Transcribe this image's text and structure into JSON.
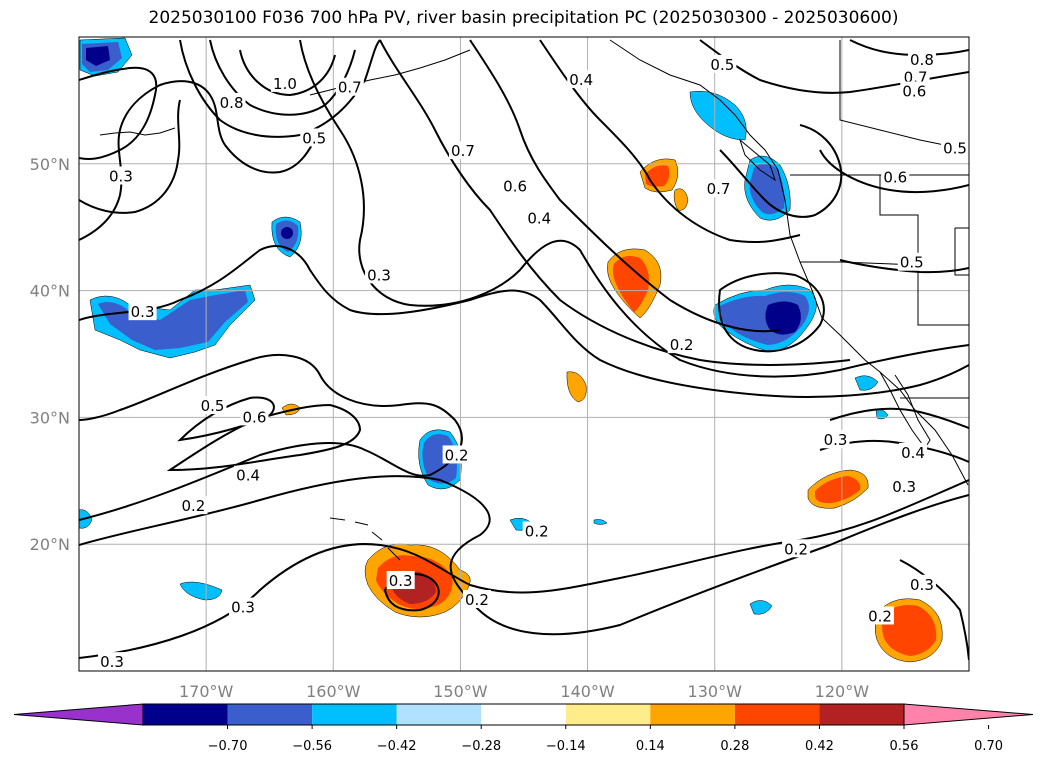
{
  "title": "2025030100 F036 700 hPa PV, river basin precipitation PC (2025030300 - 2025030600)",
  "chart_data": {
    "type": "contour-map",
    "projection": "lat-lon",
    "lon_range": [
      -180,
      -110
    ],
    "lat_range": [
      10,
      60
    ],
    "lat_ticks": [
      {
        "value": 20,
        "label": "20°N"
      },
      {
        "value": 30,
        "label": "30°N"
      },
      {
        "value": 40,
        "label": "40°N"
      },
      {
        "value": 50,
        "label": "50°N"
      }
    ],
    "lon_ticks": [
      {
        "value": -170,
        "label": "170°W"
      },
      {
        "value": -160,
        "label": "160°W"
      },
      {
        "value": -150,
        "label": "150°W"
      },
      {
        "value": -140,
        "label": "140°W"
      },
      {
        "value": -130,
        "label": "130°W"
      },
      {
        "value": -120,
        "label": "120°W"
      }
    ],
    "grid": true,
    "colorbar": {
      "orientation": "horizontal",
      "extend": "both",
      "ticks": [
        "−0.70",
        "−0.56",
        "−0.42",
        "−0.28",
        "−0.14",
        "0.14",
        "0.28",
        "0.42",
        "0.56",
        "0.70"
      ],
      "colors": [
        "#9932CC",
        "#00008B",
        "#3A5FCD",
        "#00BFFF",
        "#B0E2FF",
        "#FFFFFF",
        "#FFEC8B",
        "#FFA500",
        "#FF4500",
        "#B22222",
        "#FF82AB"
      ]
    },
    "contour_labels": [
      {
        "text": "0.3",
        "lon": -176.7,
        "lat": 49.0
      },
      {
        "text": "0.5",
        "lon": -161.5,
        "lat": 52.0
      },
      {
        "text": "1.0",
        "lon": -163.8,
        "lat": 56.3
      },
      {
        "text": "0.7",
        "lon": -158.7,
        "lat": 56.0
      },
      {
        "text": "0.8",
        "lon": -168.0,
        "lat": 54.8
      },
      {
        "text": "0.3",
        "lon": -175.0,
        "lat": 38.3
      },
      {
        "text": "0.3",
        "lon": -156.4,
        "lat": 41.2
      },
      {
        "text": "0.7",
        "lon": -149.8,
        "lat": 51.0
      },
      {
        "text": "0.6",
        "lon": -145.7,
        "lat": 48.2
      },
      {
        "text": "0.4",
        "lon": -143.8,
        "lat": 45.7
      },
      {
        "text": "0.4",
        "lon": -140.5,
        "lat": 56.6
      },
      {
        "text": "0.5",
        "lon": -129.4,
        "lat": 57.8
      },
      {
        "text": "0.7",
        "lon": -129.7,
        "lat": 48.0
      },
      {
        "text": "0.2",
        "lon": -132.6,
        "lat": 35.7
      },
      {
        "text": "0.8",
        "lon": -113.7,
        "lat": 58.2
      },
      {
        "text": "0.7",
        "lon": -114.2,
        "lat": 56.8
      },
      {
        "text": "0.6",
        "lon": -114.3,
        "lat": 55.7
      },
      {
        "text": "0.5",
        "lon": -111.1,
        "lat": 51.2
      },
      {
        "text": "0.6",
        "lon": -115.8,
        "lat": 48.9
      },
      {
        "text": "0.5",
        "lon": -114.5,
        "lat": 42.2
      },
      {
        "text": "0.5",
        "lon": -169.5,
        "lat": 30.9
      },
      {
        "text": "0.6",
        "lon": -166.2,
        "lat": 30.0
      },
      {
        "text": "0.4",
        "lon": -166.7,
        "lat": 25.4
      },
      {
        "text": "0.2",
        "lon": -171.0,
        "lat": 23.0
      },
      {
        "text": "0.2",
        "lon": -150.3,
        "lat": 27.0
      },
      {
        "text": "0.2",
        "lon": -144.0,
        "lat": 21.0
      },
      {
        "text": "0.3",
        "lon": -120.5,
        "lat": 28.2
      },
      {
        "text": "0.4",
        "lon": -114.4,
        "lat": 27.2
      },
      {
        "text": "0.3",
        "lon": -115.1,
        "lat": 24.5
      },
      {
        "text": "0.2",
        "lon": -123.6,
        "lat": 19.6
      },
      {
        "text": "0.3",
        "lon": -154.7,
        "lat": 17.1
      },
      {
        "text": "0.2",
        "lon": -148.7,
        "lat": 15.6
      },
      {
        "text": "0.3",
        "lon": -167.1,
        "lat": 15.0
      },
      {
        "text": "0.3",
        "lon": -113.7,
        "lat": 16.8
      },
      {
        "text": "0.2",
        "lon": -117.0,
        "lat": 14.3
      },
      {
        "text": "0.3",
        "lon": -177.4,
        "lat": 10.7
      }
    ],
    "shaded_regions": [
      {
        "lon": -177.5,
        "lat": 58.8,
        "value": -0.6
      },
      {
        "lon": -163.9,
        "lat": 44.3,
        "value": -0.5
      },
      {
        "lon": -172.5,
        "lat": 38.3,
        "value": -0.35
      },
      {
        "lon": -150.5,
        "lat": 27.0,
        "value": -0.45
      },
      {
        "lon": -124.5,
        "lat": 38.0,
        "value": -0.6
      },
      {
        "lon": -126.4,
        "lat": 48.2,
        "value": -0.4
      },
      {
        "lon": -129.3,
        "lat": 55.0,
        "value": -0.35
      },
      {
        "lon": -137.1,
        "lat": 41.0,
        "value": 0.45
      },
      {
        "lon": -135.0,
        "lat": 49.0,
        "value": 0.35
      },
      {
        "lon": -140.9,
        "lat": 32.6,
        "value": 0.3
      },
      {
        "lon": -154.0,
        "lat": 16.5,
        "value": 0.55
      },
      {
        "lon": -120.4,
        "lat": 23.3,
        "value": 0.45
      },
      {
        "lon": -116.3,
        "lat": 13.1,
        "value": 0.45
      },
      {
        "lon": -164.5,
        "lat": 30.8,
        "value": 0.3
      },
      {
        "lon": -178.5,
        "lat": 37.7,
        "value": -0.3
      },
      {
        "lon": -172.2,
        "lat": 16.5,
        "value": -0.3
      },
      {
        "lon": -144.4,
        "lat": 21.3,
        "value": -0.3
      },
      {
        "lon": -126.0,
        "lat": 13.5,
        "value": -0.3
      },
      {
        "lon": -118.1,
        "lat": 32.5,
        "value": -0.3
      }
    ]
  }
}
